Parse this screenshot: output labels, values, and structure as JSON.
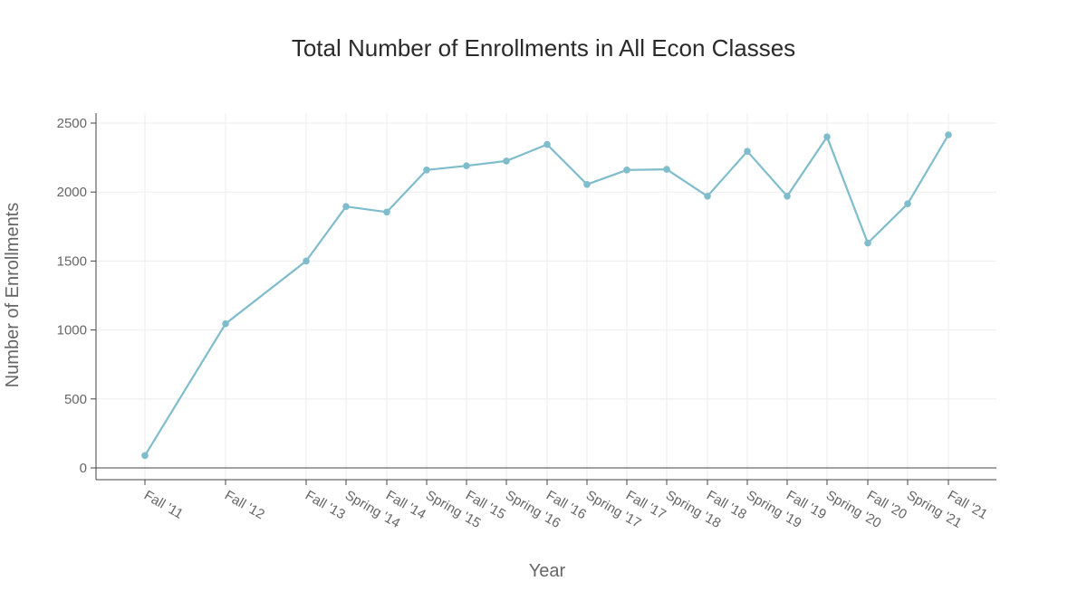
{
  "chart_data": {
    "type": "line",
    "title": "Total Number of Enrollments in All Econ Classes",
    "xlabel": "Year",
    "ylabel": "Number of Enrollments",
    "categories": [
      "Fall '11",
      "Fall '12",
      "Fall '13",
      "Spring '14",
      "Fall '14",
      "Spring '15",
      "Fall '15",
      "Spring '16",
      "Fall '16",
      "Spring '17",
      "Fall '17",
      "Spring '18",
      "Fall '18",
      "Spring '19",
      "Fall '19",
      "Spring '20",
      "Fall '20",
      "Spring '21",
      "Fall '21"
    ],
    "series": [
      {
        "values": [
          90,
          1045,
          1500,
          1895,
          1855,
          2160,
          2190,
          2225,
          2345,
          2055,
          2160,
          2165,
          1970,
          2295,
          1970,
          2400,
          1630,
          1915,
          2415
        ]
      }
    ],
    "yticks": [
      0,
      500,
      1000,
      1500,
      2000,
      2500
    ],
    "ylim": [
      -80,
      2560
    ],
    "grid": true,
    "line_color": "#7fbccc"
  }
}
